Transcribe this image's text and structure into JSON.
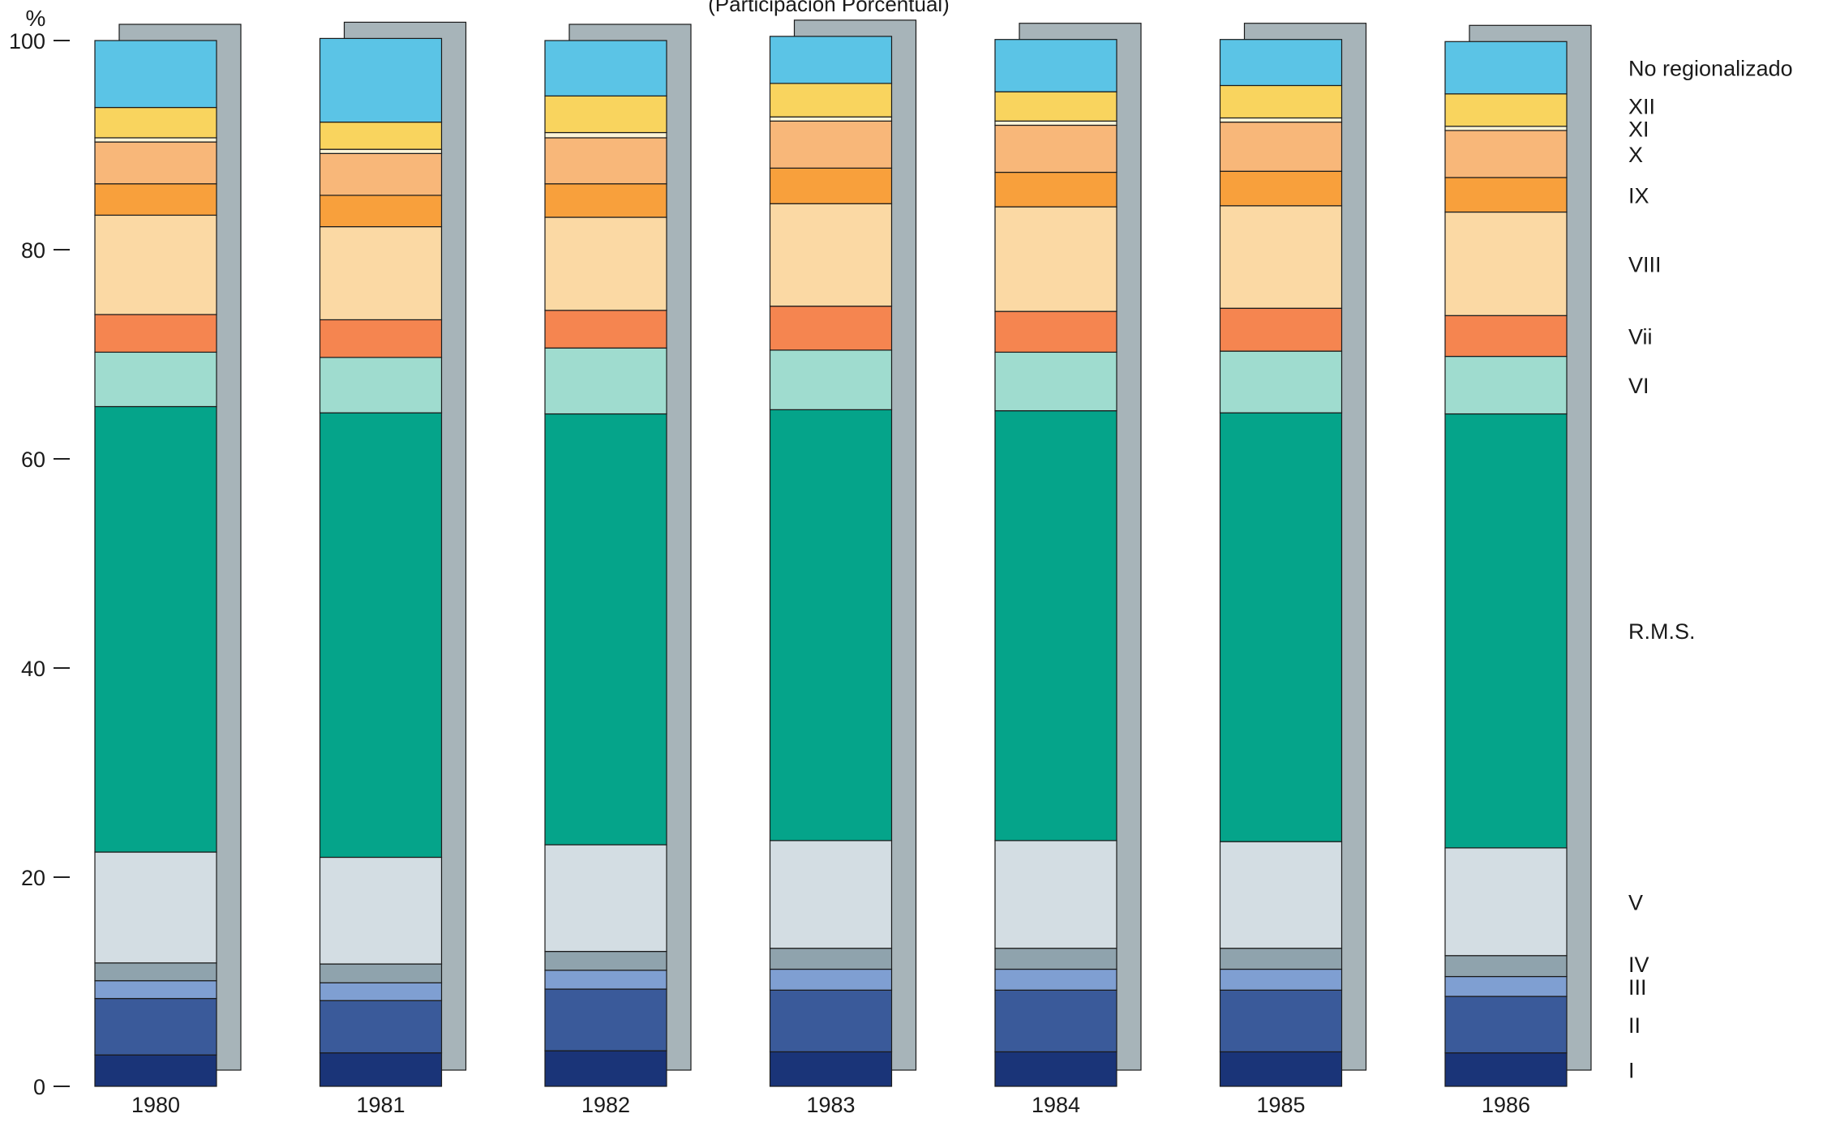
{
  "chart_data": {
    "type": "bar",
    "stacked": true,
    "subtitle": "(Participación Porcentual)",
    "ylabel": "%",
    "ylim": [
      0,
      100
    ],
    "yticks": [
      0,
      20,
      40,
      60,
      80,
      100
    ],
    "grid": false,
    "legend_placement": "right",
    "categories": [
      "1980",
      "1981",
      "1982",
      "1983",
      "1984",
      "1985",
      "1986"
    ],
    "series": [
      {
        "name": "I",
        "color": "#1a3478",
        "values": [
          3.0,
          3.2,
          3.4,
          3.3,
          3.3,
          3.3,
          3.2
        ]
      },
      {
        "name": "II",
        "color": "#3a5a9a",
        "values": [
          5.4,
          5.0,
          5.9,
          5.9,
          5.9,
          5.9,
          5.4
        ]
      },
      {
        "name": "III",
        "color": "#7f9fd2",
        "values": [
          1.7,
          1.7,
          1.8,
          2.0,
          2.0,
          2.0,
          1.9
        ]
      },
      {
        "name": "IV",
        "color": "#8fa3ad",
        "values": [
          1.7,
          1.8,
          1.8,
          2.0,
          2.0,
          2.0,
          2.0
        ]
      },
      {
        "name": "V",
        "color": "#d3dde3",
        "values": [
          10.6,
          10.2,
          10.2,
          10.3,
          10.3,
          10.2,
          10.3
        ]
      },
      {
        "name": "R.M.S.",
        "color": "#05a48a",
        "values": [
          42.6,
          42.5,
          41.2,
          41.2,
          41.1,
          41.0,
          41.5
        ]
      },
      {
        "name": "VI",
        "color": "#9fdccf",
        "values": [
          5.2,
          5.3,
          6.3,
          5.7,
          5.6,
          5.9,
          5.5
        ]
      },
      {
        "name": "VII",
        "color": "#f58550",
        "values": [
          3.6,
          3.6,
          3.6,
          4.2,
          3.9,
          4.1,
          3.9
        ]
      },
      {
        "name": "VIII",
        "color": "#fbd9a4",
        "values": [
          9.5,
          8.9,
          8.9,
          9.8,
          10.0,
          9.8,
          9.9
        ]
      },
      {
        "name": "IX",
        "color": "#f8a03c",
        "values": [
          3.0,
          3.0,
          3.2,
          3.4,
          3.3,
          3.3,
          3.3
        ]
      },
      {
        "name": "X",
        "color": "#f8b779",
        "values": [
          4.0,
          4.0,
          4.4,
          4.5,
          4.5,
          4.7,
          4.5
        ]
      },
      {
        "name": "XI",
        "color": "#fdf5d8",
        "values": [
          0.4,
          0.4,
          0.5,
          0.4,
          0.4,
          0.4,
          0.4
        ]
      },
      {
        "name": "XII",
        "color": "#f9d45e",
        "values": [
          2.9,
          2.6,
          3.5,
          3.2,
          2.8,
          3.1,
          3.1
        ]
      },
      {
        "name": "No regionalizado",
        "color": "#5bc4e6",
        "values": [
          6.4,
          8.0,
          5.3,
          4.5,
          5.0,
          4.4,
          5.0
        ]
      }
    ],
    "legend_labels": [
      "I",
      "II",
      "III",
      "IV",
      "V",
      "R.M.S.",
      "VI",
      "Vii",
      "VIII",
      "IX",
      "X",
      "XI",
      "XII",
      "No regionalizado"
    ]
  }
}
